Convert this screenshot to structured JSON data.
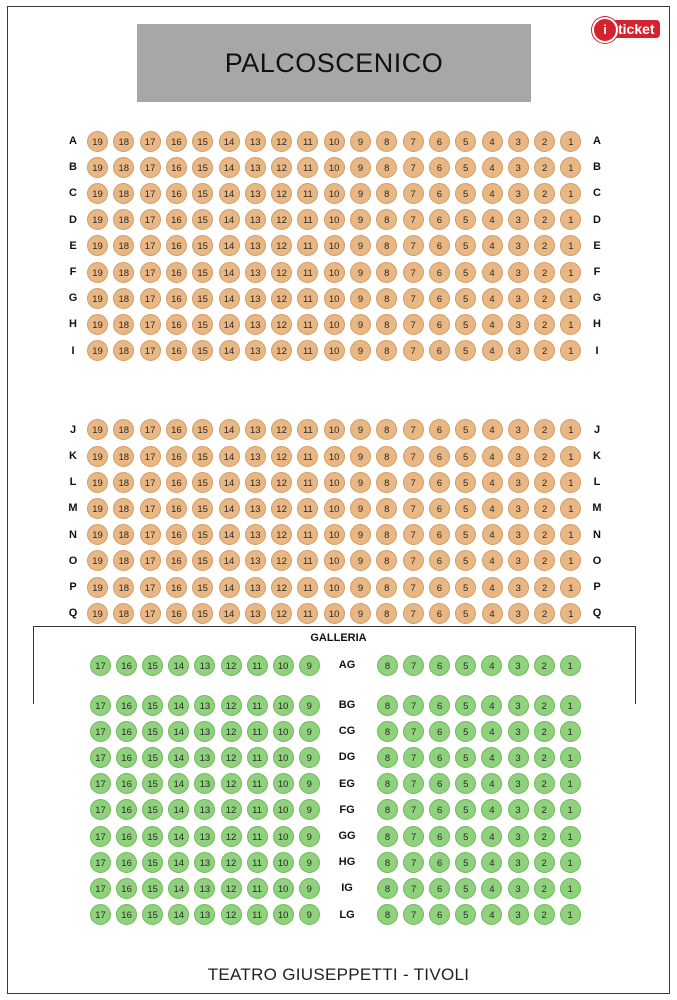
{
  "stage_label": "PALCOSCENICO",
  "logo": {
    "symbol": "i",
    "word": "ticket",
    "color": "#d4232f"
  },
  "stalls": {
    "color": "#e8b784",
    "rows": [
      "A",
      "B",
      "C",
      "D",
      "E",
      "F",
      "G",
      "H",
      "I",
      "J",
      "K",
      "L",
      "M",
      "N",
      "O",
      "P",
      "Q"
    ],
    "seats": [
      19,
      18,
      17,
      16,
      15,
      14,
      13,
      12,
      11,
      10,
      9,
      8,
      7,
      6,
      5,
      4,
      3,
      2,
      1
    ]
  },
  "gallery": {
    "title": "GALLERIA",
    "color": "#8fd17d",
    "rows": [
      "AG",
      "BG",
      "CG",
      "DG",
      "EG",
      "FG",
      "GG",
      "HG",
      "IG",
      "LG"
    ],
    "left_seats": [
      17,
      16,
      15,
      14,
      13,
      12,
      11,
      10,
      9
    ],
    "right_seats": [
      8,
      7,
      6,
      5,
      4,
      3,
      2,
      1
    ]
  },
  "footer": "TEATRO GIUSEPPETTI - TIVOLI"
}
